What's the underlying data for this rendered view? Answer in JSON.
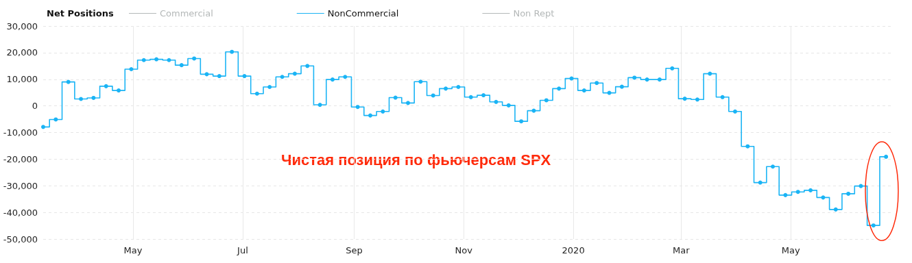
{
  "chart_data": {
    "type": "step",
    "legend_title": "Net Positions",
    "legend": "top left",
    "grid": true,
    "marker": "circle",
    "annotations": [
      "Чистая позиция по фьючерсам SPX"
    ],
    "x": [
      "2019-03-12",
      "2019-03-19",
      "2019-03-26",
      "2019-04-02",
      "2019-04-09",
      "2019-04-16",
      "2019-04-23",
      "2019-04-30",
      "2019-05-07",
      "2019-05-14",
      "2019-05-21",
      "2019-05-28",
      "2019-06-04",
      "2019-06-11",
      "2019-06-18",
      "2019-06-25",
      "2019-07-02",
      "2019-07-09",
      "2019-07-16",
      "2019-07-23",
      "2019-07-30",
      "2019-08-06",
      "2019-08-13",
      "2019-08-20",
      "2019-08-27",
      "2019-09-03",
      "2019-09-10",
      "2019-09-17",
      "2019-09-24",
      "2019-10-01",
      "2019-10-08",
      "2019-10-15",
      "2019-10-22",
      "2019-10-29",
      "2019-11-05",
      "2019-11-12",
      "2019-11-19",
      "2019-11-26",
      "2019-12-03",
      "2019-12-10",
      "2019-12-17",
      "2019-12-24",
      "2019-12-31",
      "2020-01-07",
      "2020-01-14",
      "2020-01-21",
      "2020-01-28",
      "2020-02-04",
      "2020-02-11",
      "2020-02-18",
      "2020-02-25",
      "2020-03-03",
      "2020-03-10",
      "2020-03-17",
      "2020-03-24",
      "2020-03-31",
      "2020-04-07",
      "2020-04-14",
      "2020-04-21",
      "2020-04-28",
      "2020-05-05",
      "2020-05-12",
      "2020-05-19",
      "2020-05-26",
      "2020-06-02",
      "2020-06-09",
      "2020-06-16",
      "2020-06-23"
    ],
    "xlim": [
      "2019-03-12",
      "2020-06-26"
    ],
    "xticks": [
      {
        "value": "2019-05-01",
        "label": "May"
      },
      {
        "value": "2019-07-01",
        "label": "Jul"
      },
      {
        "value": "2019-09-01",
        "label": "Sep"
      },
      {
        "value": "2019-11-01",
        "label": "Nov"
      },
      {
        "value": "2020-01-01",
        "label": "2020"
      },
      {
        "value": "2020-03-01",
        "label": "Mar"
      },
      {
        "value": "2020-05-01",
        "label": "May"
      }
    ],
    "ylim": [
      -50000,
      30000
    ],
    "yticks": [
      {
        "value": -50000,
        "label": "-50,000"
      },
      {
        "value": -40000,
        "label": "-40,000"
      },
      {
        "value": -30000,
        "label": "-30,000"
      },
      {
        "value": -20000,
        "label": "-20,000"
      },
      {
        "value": -10000,
        "label": "-10,000"
      },
      {
        "value": 0,
        "label": "0"
      },
      {
        "value": 10000,
        "label": "10,000"
      },
      {
        "value": 20000,
        "label": "20,000"
      },
      {
        "value": 30000,
        "label": "30,000"
      }
    ],
    "series": [
      {
        "name": "Commercial",
        "color": "#b4b8b8",
        "values": [
          null,
          null,
          null,
          null,
          null,
          null,
          null,
          null,
          null,
          null,
          null,
          null,
          null,
          null,
          null,
          null,
          null,
          null,
          null,
          null,
          null,
          null,
          null,
          null,
          null,
          null,
          null,
          null,
          null,
          null,
          null,
          null,
          null,
          null,
          null,
          null,
          null,
          null,
          null,
          null,
          null,
          null,
          null,
          null,
          null,
          null,
          null,
          null,
          null,
          null,
          null,
          null,
          null,
          null,
          null,
          null,
          null,
          null,
          null,
          null,
          null,
          null,
          null,
          null,
          null,
          null,
          null,
          null
        ]
      },
      {
        "name": "NonCommercial",
        "color": "#1ab4f5",
        "values": [
          -7900,
          -5100,
          9000,
          2600,
          3000,
          7400,
          5800,
          13800,
          17200,
          17500,
          17200,
          15300,
          17800,
          11900,
          11200,
          20300,
          11200,
          4600,
          7100,
          10900,
          12100,
          15000,
          400,
          9900,
          10900,
          -400,
          -3600,
          -2100,
          3100,
          1100,
          9100,
          3900,
          6500,
          7100,
          3300,
          4000,
          1500,
          200,
          -5800,
          -1800,
          2100,
          6500,
          10300,
          5800,
          8600,
          4900,
          7200,
          10600,
          9900,
          9900,
          14100,
          2700,
          2400,
          12100,
          3300,
          -2100,
          -15200,
          -28800,
          -22800,
          -33500,
          -32300,
          -31700,
          -34400,
          -38900,
          -33000,
          -30100,
          -44900,
          -19100
        ]
      },
      {
        "name": "Non Rept",
        "color": "#b4b8b8",
        "values": [
          null,
          null,
          null,
          null,
          null,
          null,
          null,
          null,
          null,
          null,
          null,
          null,
          null,
          null,
          null,
          null,
          null,
          null,
          null,
          null,
          null,
          null,
          null,
          null,
          null,
          null,
          null,
          null,
          null,
          null,
          null,
          null,
          null,
          null,
          null,
          null,
          null,
          null,
          null,
          null,
          null,
          null,
          null,
          null,
          null,
          null,
          null,
          null,
          null,
          null,
          null,
          null,
          null,
          null,
          null,
          null,
          null,
          null,
          null,
          null,
          null,
          null,
          null,
          null,
          null,
          null,
          null,
          null
        ]
      }
    ]
  }
}
